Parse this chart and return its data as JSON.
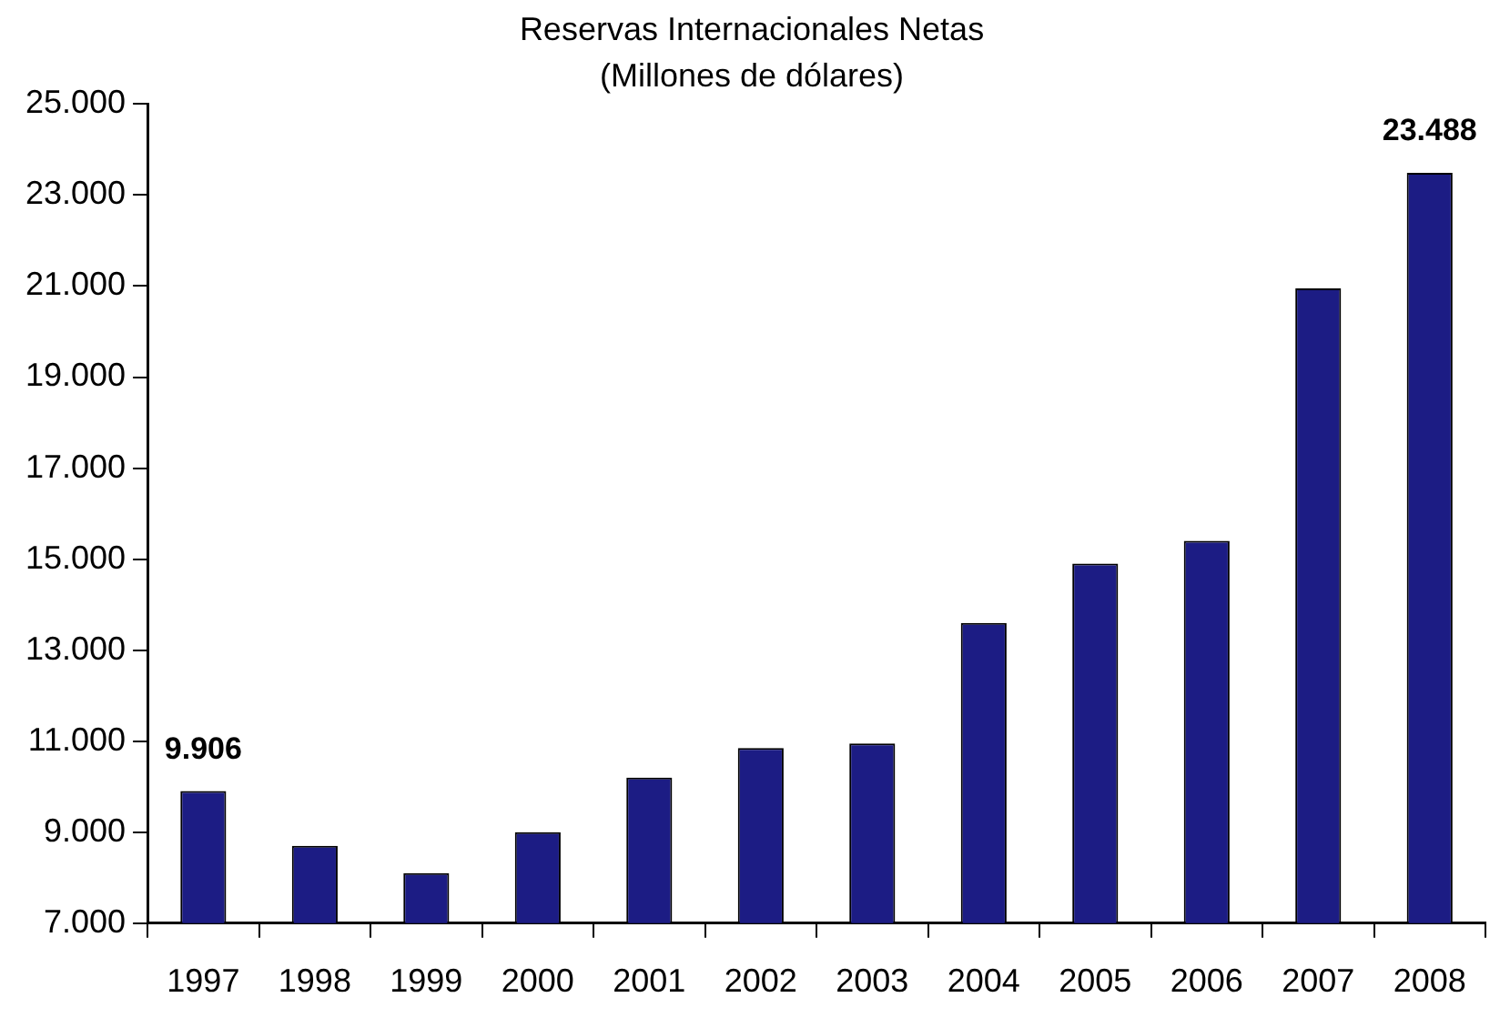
{
  "chart_data": {
    "type": "bar",
    "title": "Reservas Internacionales Netas",
    "subtitle": "(Millones de dólares)",
    "categories": [
      "1997",
      "1998",
      "1999",
      "2000",
      "2001",
      "2002",
      "2003",
      "2004",
      "2005",
      "2006",
      "2007",
      "2008"
    ],
    "values": [
      9906,
      8700,
      8100,
      9000,
      10200,
      10850,
      10950,
      13600,
      14900,
      15400,
      20950,
      23488
    ],
    "value_labels": [
      "9.906",
      null,
      null,
      null,
      null,
      null,
      null,
      null,
      null,
      null,
      null,
      "23.488"
    ],
    "color": "#1c1c84",
    "ylim": [
      7000,
      25000
    ],
    "yticks": [
      {
        "value": 7000,
        "label": "7.000"
      },
      {
        "value": 9000,
        "label": "9.000"
      },
      {
        "value": 11000,
        "label": "11.000"
      },
      {
        "value": 13000,
        "label": "13.000"
      },
      {
        "value": 15000,
        "label": "15.000"
      },
      {
        "value": 17000,
        "label": "17.000"
      },
      {
        "value": 19000,
        "label": "19.000"
      },
      {
        "value": 21000,
        "label": "21.000"
      },
      {
        "value": 23000,
        "label": "23.000"
      },
      {
        "value": 25000,
        "label": "25.000"
      }
    ],
    "grid": false,
    "legend": false
  }
}
